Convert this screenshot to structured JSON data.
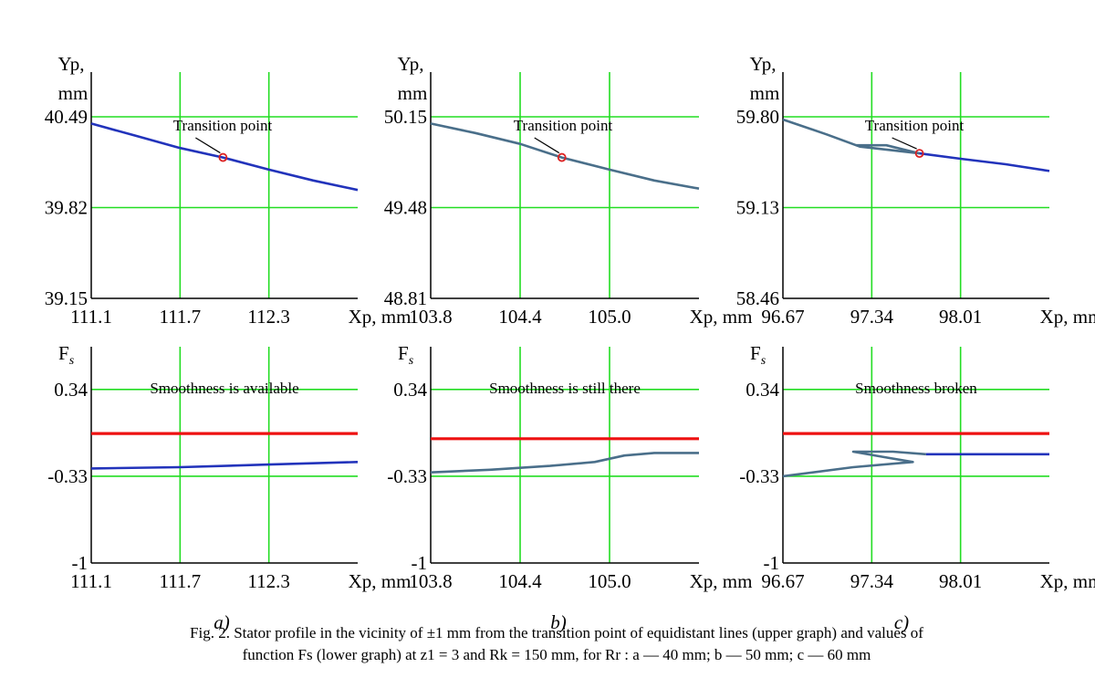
{
  "chart_data": [
    {
      "id": "a_top",
      "type": "line",
      "panel": "a",
      "position": "upper",
      "ylabel_line1": "Yp,",
      "ylabel_line2": "mm",
      "xlabel": "Xp, mm",
      "xticks": [
        "111.1",
        "111.7",
        "112.3"
      ],
      "xtick_values": [
        111.1,
        111.7,
        112.3
      ],
      "yticks": [
        "39.15",
        "39.82",
        "40.49"
      ],
      "ytick_values": [
        39.15,
        39.82,
        40.49
      ],
      "xlim": [
        111.1,
        112.9
      ],
      "ylim": [
        39.15,
        40.82
      ],
      "annotation": "Transition point",
      "transition_point": {
        "x": 111.99,
        "y": 40.19
      },
      "series": [
        {
          "color": "#2233bb",
          "points": [
            [
              111.1,
              40.44
            ],
            [
              111.4,
              40.35
            ],
            [
              111.7,
              40.26
            ],
            [
              111.99,
              40.19
            ],
            [
              112.3,
              40.1
            ],
            [
              112.6,
              40.02
            ],
            [
              112.9,
              39.95
            ]
          ]
        }
      ]
    },
    {
      "id": "b_top",
      "type": "line",
      "panel": "b",
      "position": "upper",
      "ylabel_line1": "Yp,",
      "ylabel_line2": "mm",
      "xlabel": "Xp, mm",
      "xticks": [
        "103.8",
        "104.4",
        "105.0"
      ],
      "xtick_values": [
        103.8,
        104.4,
        105.0
      ],
      "yticks": [
        "48.81",
        "49.48",
        "50.15"
      ],
      "ytick_values": [
        48.81,
        49.48,
        50.15
      ],
      "xlim": [
        103.8,
        105.6
      ],
      "ylim": [
        48.81,
        50.48
      ],
      "annotation": "Transition point",
      "transition_point": {
        "x": 104.68,
        "y": 49.85
      },
      "series": [
        {
          "color": "#4a6f8a",
          "points": [
            [
              103.8,
              50.1
            ],
            [
              104.1,
              50.03
            ],
            [
              104.4,
              49.95
            ],
            [
              104.68,
              49.85
            ],
            [
              105.0,
              49.76
            ],
            [
              105.3,
              49.68
            ],
            [
              105.6,
              49.62
            ]
          ]
        }
      ]
    },
    {
      "id": "c_top",
      "type": "line",
      "panel": "c",
      "position": "upper",
      "ylabel_line1": "Yp,",
      "ylabel_line2": "mm",
      "xlabel": "Xp, mm",
      "xticks": [
        "96.67",
        "97.34",
        "98.01"
      ],
      "xtick_values": [
        96.67,
        97.34,
        98.01
      ],
      "yticks": [
        "58.46",
        "59.13",
        "59.80"
      ],
      "ytick_values": [
        58.46,
        59.13,
        59.8
      ],
      "xlim": [
        96.67,
        98.68
      ],
      "ylim": [
        58.46,
        60.13
      ],
      "annotation": "Transition point",
      "transition_point": {
        "x": 97.7,
        "y": 59.53
      },
      "series": [
        {
          "color": "#4a6f8a",
          "points": [
            [
              96.67,
              59.78
            ],
            [
              97.0,
              59.67
            ],
            [
              97.25,
              59.58
            ],
            [
              97.7,
              59.53
            ]
          ]
        },
        {
          "color": "#4a6f8a",
          "points": [
            [
              97.22,
              59.59
            ],
            [
              97.45,
              59.59
            ],
            [
              97.7,
              59.53
            ]
          ]
        },
        {
          "color": "#2233bb",
          "points": [
            [
              97.7,
              59.53
            ],
            [
              98.01,
              59.49
            ],
            [
              98.35,
              59.45
            ],
            [
              98.68,
              59.4
            ]
          ]
        }
      ]
    },
    {
      "id": "a_bottom",
      "type": "line",
      "panel": "a",
      "position": "lower",
      "ylabel": "F",
      "ylabel_sub": "s",
      "xlabel": "Xp, mm",
      "xticks": [
        "111.1",
        "111.7",
        "112.3"
      ],
      "xtick_values": [
        111.1,
        111.7,
        112.3
      ],
      "yticks": [
        "-1",
        "-0.33",
        "0.34"
      ],
      "ytick_values": [
        -1,
        -0.33,
        0.34
      ],
      "xlim": [
        111.1,
        112.9
      ],
      "ylim": [
        -1,
        0.67
      ],
      "annotation": "Smoothness is available",
      "series": [
        {
          "color": "#ee1111",
          "points": [
            [
              111.1,
              0.0
            ],
            [
              112.9,
              0.0
            ]
          ]
        },
        {
          "color": "#2233bb",
          "points": [
            [
              111.1,
              -0.27
            ],
            [
              111.7,
              -0.26
            ],
            [
              112.3,
              -0.24
            ],
            [
              112.9,
              -0.22
            ]
          ]
        }
      ]
    },
    {
      "id": "b_bottom",
      "type": "line",
      "panel": "b",
      "position": "lower",
      "ylabel": "F",
      "ylabel_sub": "s",
      "xlabel": "Xp, mm",
      "xticks": [
        "103.8",
        "104.4",
        "105.0"
      ],
      "xtick_values": [
        103.8,
        104.4,
        105.0
      ],
      "yticks": [
        "-1",
        "-0.33",
        "0.34"
      ],
      "ytick_values": [
        -1,
        -0.33,
        0.34
      ],
      "xlim": [
        103.8,
        105.6
      ],
      "ylim": [
        -1,
        0.67
      ],
      "annotation": "Smoothness is still there",
      "series": [
        {
          "color": "#ee1111",
          "points": [
            [
              103.8,
              -0.04
            ],
            [
              105.6,
              -0.04
            ]
          ]
        },
        {
          "color": "#4a6f8a",
          "points": [
            [
              103.8,
              -0.3
            ],
            [
              104.2,
              -0.28
            ],
            [
              104.6,
              -0.25
            ],
            [
              104.9,
              -0.22
            ],
            [
              105.1,
              -0.17
            ],
            [
              105.3,
              -0.15
            ],
            [
              105.6,
              -0.15
            ]
          ]
        }
      ]
    },
    {
      "id": "c_bottom",
      "type": "line",
      "panel": "c",
      "position": "lower",
      "ylabel": "F",
      "ylabel_sub": "s",
      "xlabel": "Xp, mm",
      "xticks": [
        "96.67",
        "97.34",
        "98.01"
      ],
      "xtick_values": [
        96.67,
        97.34,
        98.01
      ],
      "yticks": [
        "-1",
        "-0.33",
        "0.34"
      ],
      "ytick_values": [
        -1,
        -0.33,
        0.34
      ],
      "xlim": [
        96.67,
        98.68
      ],
      "ylim": [
        -1,
        0.67
      ],
      "annotation": "Smoothness broken",
      "series": [
        {
          "color": "#ee1111",
          "points": [
            [
              96.67,
              0.0
            ],
            [
              98.68,
              0.0
            ]
          ]
        },
        {
          "color": "#4a6f8a",
          "points": [
            [
              96.67,
              -0.33
            ],
            [
              97.2,
              -0.26
            ],
            [
              97.65,
              -0.22
            ],
            [
              97.42,
              -0.18
            ],
            [
              97.2,
              -0.14
            ],
            [
              97.5,
              -0.14
            ],
            [
              97.75,
              -0.16
            ]
          ]
        },
        {
          "color": "#2233bb",
          "points": [
            [
              97.75,
              -0.16
            ],
            [
              98.2,
              -0.16
            ],
            [
              98.68,
              -0.16
            ]
          ]
        }
      ]
    }
  ],
  "panel_labels": {
    "a": "a)",
    "b": "b)",
    "c": "c)"
  },
  "caption": {
    "line1": "Fig. 2. Stator profile in the vicinity of ±1 mm from the transition point of equidistant lines (upper graph) and values of",
    "line2": "function Fs (lower graph) at z1 = 3 and Rk = 150 mm, for Rr : a — 40 mm; b — 50 mm; c — 60 mm"
  },
  "colors": {
    "grid": "#22dd22",
    "axis": "#000000",
    "red_line": "#ee1111",
    "marker": "#dd2222"
  }
}
